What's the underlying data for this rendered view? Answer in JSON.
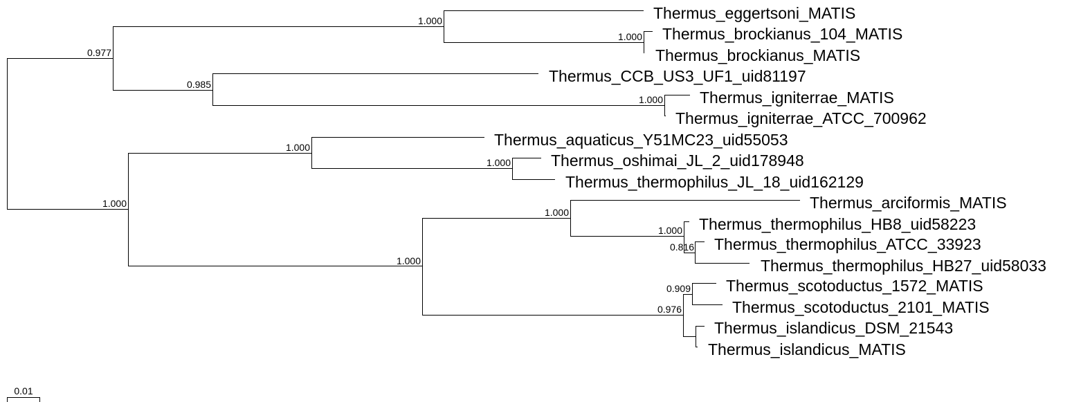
{
  "tree": {
    "line_color": "#000000",
    "scale_bar": {
      "label": "0.01",
      "value": 0.01
    },
    "support_values": {
      "root_upper": "0.977",
      "eggertsoni_brockianus": "1.000",
      "brockianus_pair": "1.000",
      "ccb_igniterrae": "0.985",
      "igniterrae_pair": "1.000",
      "root_lower": "1.000",
      "aquaticus_group": "1.000",
      "oshimai_jl18": "1.000",
      "arciformis_scotoductus": "1.000",
      "arciformis_thermophilus": "1.000",
      "hb8_group": "1.000",
      "atcc_hb27": "0.816",
      "scotoductus_islandicus": "0.976",
      "scotoductus_pair": "0.909"
    },
    "taxa": [
      "Thermus_eggertsoni_MATIS",
      "Thermus_brockianus_104_MATIS",
      "Thermus_brockianus_MATIS",
      "Thermus_CCB_US3_UF1_uid81197",
      "Thermus_igniterrae_MATIS",
      "Thermus_igniterrae_ATCC_700962",
      "Thermus_aquaticus_Y51MC23_uid55053",
      "Thermus_oshimai_JL_2_uid178948",
      "Thermus_thermophilus_JL_18_uid162129",
      "Thermus_arciformis_MATIS",
      "Thermus_thermophilus_HB8_uid58223",
      "Thermus_thermophilus_ATCC_33923",
      "Thermus_thermophilus_HB27_uid58033",
      "Thermus_scotoductus_1572_MATIS",
      "Thermus_scotoductus_2101_MATIS",
      "Thermus_islandicus_DSM_21543",
      "Thermus_islandicus_MATIS"
    ]
  }
}
